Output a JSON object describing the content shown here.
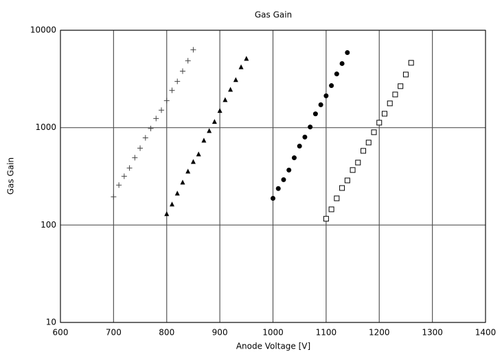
{
  "chart_data": {
    "type": "scatter",
    "title": "Gas Gain",
    "x_label": "Anode Voltage [V]",
    "y_label": "Gas Gain",
    "xlim": [
      600,
      1400
    ],
    "xticks": [
      600,
      700,
      800,
      900,
      1000,
      1100,
      1200,
      1300,
      1400
    ],
    "ylim": [
      10,
      10000
    ],
    "yticks": [
      10,
      100,
      1000,
      10000
    ],
    "y_log": true,
    "grid": true,
    "grid_color": "#555555",
    "series": [
      {
        "marker": "plus",
        "color": "#444444",
        "x": [
          700,
          710,
          720,
          730,
          740,
          750,
          760,
          770,
          780,
          790,
          800,
          810,
          820,
          830,
          840,
          850
        ],
        "values": [
          195,
          257,
          317,
          385,
          491,
          616,
          785,
          980,
          1242,
          1510,
          1893,
          2416,
          2985,
          3800,
          4860,
          6310
        ]
      },
      {
        "marker": "triangle",
        "color": "#000000",
        "x": [
          800,
          810,
          820,
          830,
          840,
          850,
          860,
          870,
          880,
          890,
          900,
          910,
          920,
          930,
          940,
          950
        ],
        "values": [
          130,
          163,
          211,
          274,
          355,
          446,
          533,
          738,
          927,
          1150,
          1490,
          1923,
          2455,
          3090,
          4180,
          5100
        ]
      },
      {
        "marker": "circle",
        "color": "#000000",
        "x": [
          1000,
          1010,
          1020,
          1030,
          1040,
          1050,
          1060,
          1070,
          1080,
          1090,
          1100,
          1110,
          1120,
          1130,
          1140
        ],
        "values": [
          188,
          237,
          292,
          367,
          490,
          646,
          800,
          1016,
          1385,
          1718,
          2123,
          2700,
          3560,
          4550,
          5900
        ]
      },
      {
        "marker": "square",
        "color": "#000000",
        "x": [
          1100,
          1110,
          1120,
          1130,
          1140,
          1150,
          1160,
          1170,
          1180,
          1190,
          1200,
          1210,
          1220,
          1230,
          1240,
          1250,
          1260
        ],
        "values": [
          116,
          145,
          188,
          240,
          287,
          367,
          438,
          578,
          703,
          897,
          1125,
          1390,
          1775,
          2190,
          2665,
          3510,
          4630
        ]
      }
    ]
  }
}
